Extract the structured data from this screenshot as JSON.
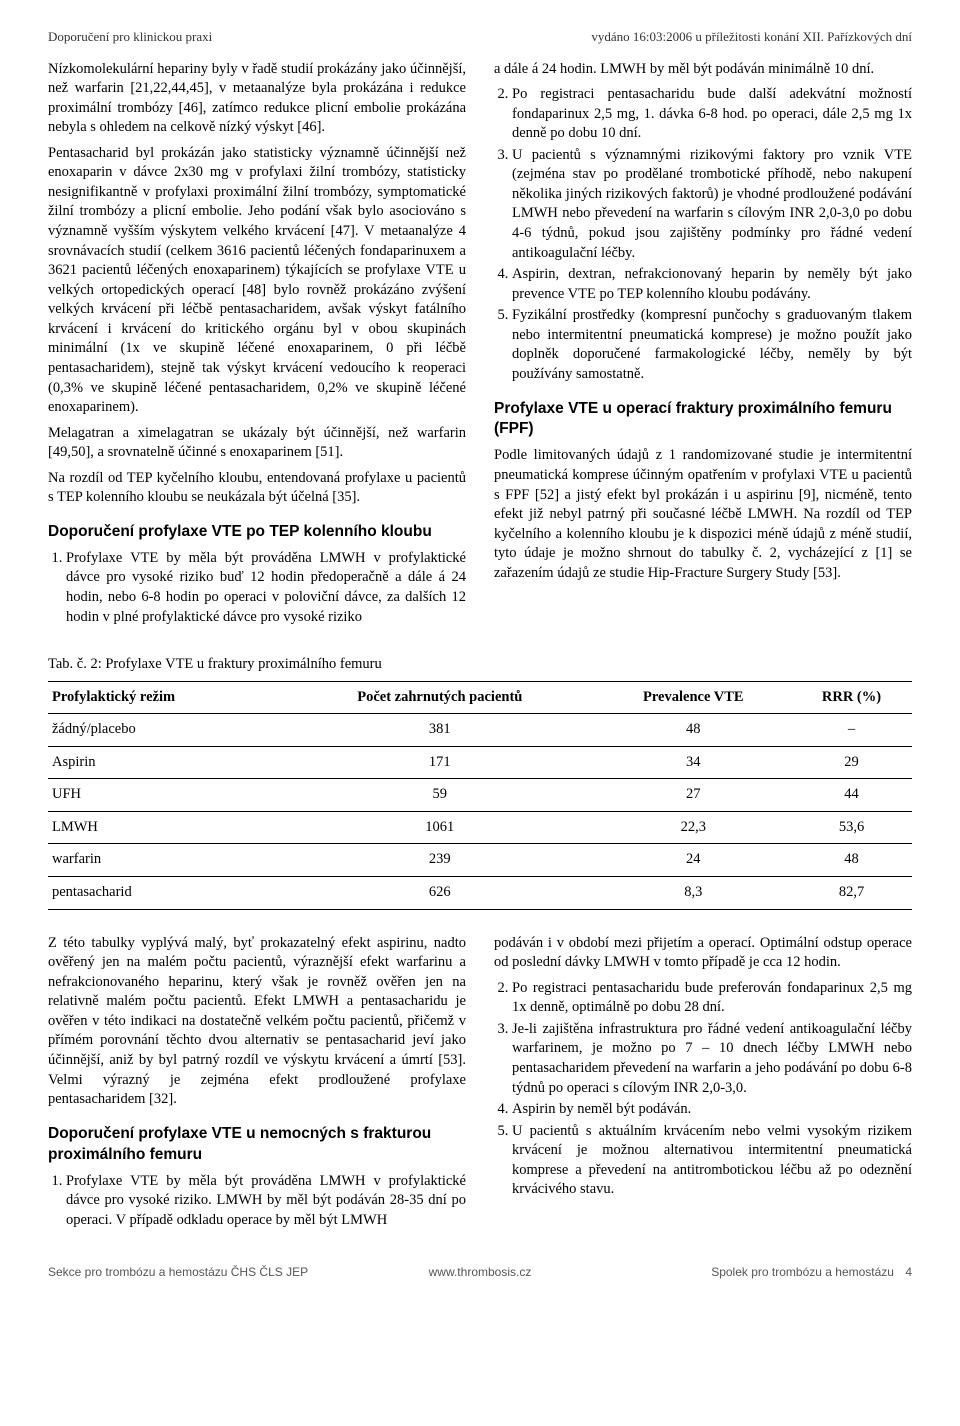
{
  "header": {
    "left": "Doporučení pro klinickou praxi",
    "right": "vydáno 16:03:2006 u příležitosti konání XII. Pařízkových dní"
  },
  "left_col": {
    "p1": "Nízkomolekulární hepariny byly v řadě studií prokázány jako účinnější, než warfarin [21,22,44,45], v metaanalýze byla prokázána i redukce proximální trombózy [46], zatímco redukce plicní embolie prokázána nebyla s ohledem na celkově nízký výskyt [46].",
    "p2": "Pentasacharid byl prokázán jako statisticky významně účinnější než enoxaparin v dávce 2x30 mg v profylaxi žilní trombózy, statisticky nesignifikantně v profylaxi proximální žilní trombózy, symptomatické žilní trombózy a plicní embolie. Jeho podání však bylo asociováno s významně vyšším výskytem velkého krvácení [47]. V metaanalýze 4 srovnávacích studií (celkem 3616 pacientů léčených fondaparinuxem a 3621 pacientů léčených enoxaparinem) týkajících se profylaxe VTE u velkých ortopedických operací [48] bylo rovněž prokázáno zvýšení velkých krvácení při léčbě pentasacharidem, avšak výskyt fatálního krvácení i krvácení do kritického orgánu byl v obou skupinách minimální (1x ve skupině léčené enoxaparinem, 0 při léčbě pentasacharidem), stejně tak výskyt krvácení vedoucího k reoperaci (0,3% ve skupině léčené pentasacharidem, 0,2% ve skupině léčené enoxaparinem).",
    "p3": "Melagatran a ximelagatran se ukázaly být účinnější, než warfarin [49,50], a srovnatelně účinné s enoxaparinem [51].",
    "p4": "Na rozdíl od TEP kyčelního kloubu, entendovaná profylaxe u pacientů s TEP kolenního kloubu se neukázala být účelná [35].",
    "h_knee": "Doporučení profylaxe VTE po TEP kolenního kloubu",
    "knee_1": "Profylaxe VTE by měla být prováděna LMWH v profylaktické dávce pro vysoké riziko buď 12 hodin předoperačně a dále á 24 hodin, nebo 6-8 hodin po operaci v poloviční dávce, za dalších 12 hodin v plné profylaktické dávce pro vysoké riziko"
  },
  "right_col": {
    "cont": "a dále á 24 hodin. LMWH by měl být podáván minimálně 10 dní.",
    "item2": "Po registraci pentasacharidu bude další adekvátní možností fondaparinux 2,5 mg, 1. dávka 6-8 hod. po operaci, dále 2,5 mg 1x denně po dobu 10 dní.",
    "item3": "U pacientů s významnými rizikovými faktory pro vznik VTE (zejména stav po prodělané trombotické příhodě, nebo nakupení několika jiných rizikových faktorů) je vhodné prodloužené podávání LMWH nebo převedení na warfarin s cílovým INR 2,0-3,0 po dobu 4-6 týdnů, pokud jsou zajištěny podmínky pro řádné vedení antikoagulační léčby.",
    "item4": "Aspirin, dextran, nefrakcionovaný heparin by neměly být jako prevence VTE po TEP kolenního kloubu podávány.",
    "item5": "Fyzikální prostředky (kompresní punčochy s graduovaným tlakem nebo intermitentní pneumatická komprese) je možno použít jako doplněk doporučené farmakologické léčby, neměly by být používány samostatně.",
    "h_fpf": "Profylaxe VTE u operací fraktury proximálního femuru (FPF)",
    "fpf_p": "Podle limitovaných údajů z 1 randomizované studie je intermitentní pneumatická komprese účinným opatřením v profylaxi VTE u pacientů s FPF [52] a jistý efekt byl prokázán i u aspirinu [9], nicméně, tento efekt již nebyl patrný při současné léčbě LMWH. Na rozdíl od TEP kyčelního a kolenního kloubu je k dispozici méně údajů z méně studií, tyto údaje je možno shrnout do tabulky č. 2, vycházející z [1] se zařazením údajů ze studie Hip-Fracture Surgery Study [53]."
  },
  "table": {
    "caption": "Tab. č. 2: Profylaxe VTE u fraktury proximálního femuru",
    "headers": [
      "Profylaktický režim",
      "Počet zahrnutých pacientů",
      "Prevalence VTE",
      "RRR (%)"
    ],
    "rows": [
      [
        "žádný/placebo",
        "381",
        "48",
        "–"
      ],
      [
        "Aspirin",
        "171",
        "34",
        "29"
      ],
      [
        "UFH",
        "59",
        "27",
        "44"
      ],
      [
        "LMWH",
        "1061",
        "22,3",
        "53,6"
      ],
      [
        "warfarin",
        "239",
        "24",
        "48"
      ],
      [
        "pentasacharid",
        "626",
        "8,3",
        "82,7"
      ]
    ],
    "col_align": [
      "left",
      "center",
      "center",
      "center"
    ]
  },
  "lower_left": {
    "p1": "Z této tabulky vyplývá malý, byť prokazatelný efekt aspirinu, nadto ověřený jen na malém počtu pacientů, výraznější efekt warfarinu a nefrakcionovaného heparinu, který však je rovněž ověřen jen na relativně malém počtu pacientů. Efekt LMWH a pentasacharidu je ověřen v této indikaci na dostatečně velkém počtu pacientů, přičemž v přímém porovnání těchto dvou alternativ se pentasacharid jeví jako účinnější, aniž by byl patrný rozdíl ve výskytu krvácení a úmrtí [53]. Velmi výrazný je zejména efekt prodloužené profylaxe pentasacharidem [32].",
    "h_fem": "Doporučení profylaxe VTE u nemocných s frakturou proximálního femuru",
    "fem_1": "Profylaxe VTE by měla být prováděna LMWH v profylaktické dávce pro vysoké riziko. LMWH by měl být podáván 28-35 dní po operaci. V případě odkladu operace by měl být LMWH"
  },
  "lower_right": {
    "cont": "podáván i v období mezi přijetím a operací. Optimální odstup operace od poslední dávky LMWH v tomto případě je cca 12 hodin.",
    "item2": "Po registraci pentasacharidu bude preferován fondaparinux 2,5 mg 1x denně, optimálně po dobu 28 dní.",
    "item3": "Je-li zajištěna infrastruktura pro řádné vedení antikoagulační léčby warfarinem, je možno po 7 – 10 dnech léčby LMWH nebo pentasacharidem převedení na warfarin a jeho podávání po dobu 6-8 týdnů po operaci s cílovým INR 2,0-3,0.",
    "item4": "Aspirin by neměl být podáván.",
    "item5": "U pacientů s aktuálním krvácením nebo velmi vysokým rizikem krvácení je možnou alternativou intermitentní pneumatická komprese a převedení na antitrombotickou léčbu až po odeznění krvácivého stavu."
  },
  "footer": {
    "left": "Sekce pro trombózu a hemostázu ČHS ČLS JEP",
    "center": "www.thrombosis.cz",
    "right": "Spolek pro trombózu a hemostázu",
    "page": "4"
  }
}
